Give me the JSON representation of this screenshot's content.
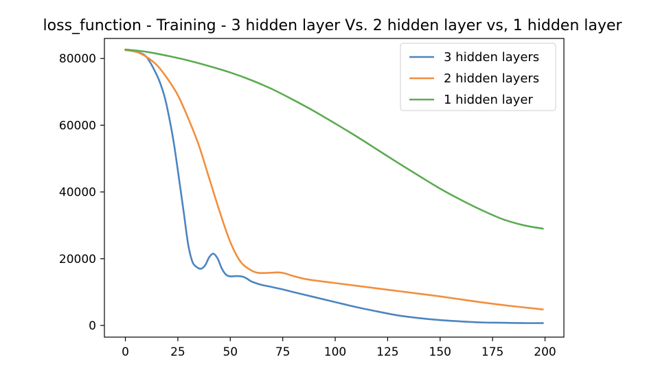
{
  "chart_data": {
    "type": "line",
    "title": "loss_function - Training - 3 hidden layer Vs. 2 hidden layer vs, 1 hidden layer",
    "xlabel": "",
    "ylabel": "",
    "xlim": [
      -10,
      209
    ],
    "ylim": [
      -3500,
      86000
    ],
    "x_ticks": [
      0,
      25,
      50,
      75,
      100,
      125,
      150,
      175,
      200
    ],
    "y_ticks": [
      0,
      20000,
      40000,
      60000,
      80000
    ],
    "grid": false,
    "legend_position": "top-right",
    "series": [
      {
        "name": "3 hidden layers",
        "color": "#4c84c0",
        "x": [
          0,
          5,
          10,
          15,
          18,
          20,
          23,
          26,
          28,
          30,
          32,
          34,
          36,
          38,
          40,
          42,
          44,
          46,
          48,
          50,
          53,
          56,
          58,
          60,
          63,
          66,
          70,
          75,
          80,
          90,
          100,
          110,
          120,
          130,
          140,
          150,
          160,
          170,
          180,
          190,
          199
        ],
        "y": [
          82500,
          82000,
          80500,
          75000,
          70000,
          65000,
          55000,
          42000,
          33000,
          24000,
          19000,
          17500,
          17000,
          18000,
          20500,
          21500,
          20000,
          17000,
          15200,
          14700,
          14800,
          14600,
          14000,
          13200,
          12500,
          12000,
          11500,
          10800,
          10000,
          8500,
          7000,
          5500,
          4200,
          3000,
          2200,
          1600,
          1200,
          900,
          800,
          700,
          700
        ]
      },
      {
        "name": "2 hidden layers",
        "color": "#f28e3c",
        "x": [
          0,
          5,
          10,
          15,
          20,
          25,
          30,
          35,
          40,
          45,
          50,
          55,
          60,
          63,
          66,
          70,
          73,
          76,
          80,
          85,
          90,
          100,
          110,
          120,
          130,
          140,
          150,
          160,
          170,
          180,
          190,
          199
        ],
        "y": [
          82500,
          82000,
          80500,
          78000,
          74000,
          69000,
          62000,
          54000,
          44000,
          34000,
          25000,
          19000,
          16500,
          15800,
          15700,
          15800,
          15900,
          15600,
          14800,
          14000,
          13500,
          12700,
          11900,
          11100,
          10300,
          9500,
          8700,
          7800,
          6900,
          6100,
          5400,
          4800
        ]
      },
      {
        "name": "1 hidden layer",
        "color": "#5aab4f",
        "x": [
          0,
          10,
          20,
          30,
          40,
          50,
          60,
          70,
          80,
          90,
          100,
          110,
          120,
          130,
          140,
          150,
          160,
          170,
          180,
          190,
          199
        ],
        "y": [
          82700,
          82000,
          80800,
          79400,
          77700,
          75800,
          73500,
          70800,
          67600,
          64200,
          60500,
          56700,
          52700,
          48700,
          44800,
          41000,
          37600,
          34500,
          31800,
          30000,
          29000
        ]
      }
    ]
  }
}
